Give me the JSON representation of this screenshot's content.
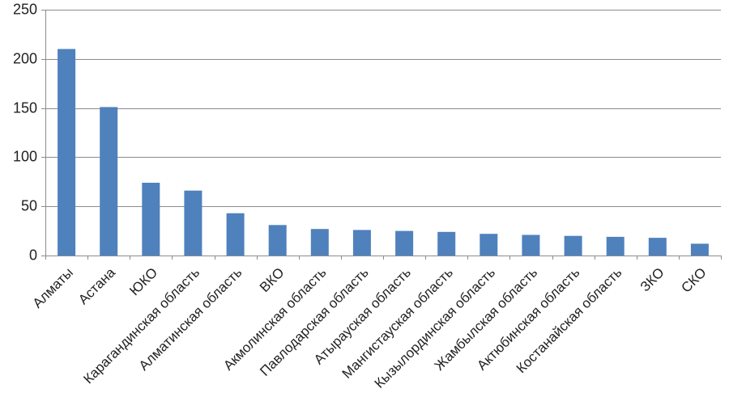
{
  "chart_data": {
    "type": "bar",
    "title": "",
    "xlabel": "",
    "ylabel": "",
    "ylim": [
      0,
      250
    ],
    "yticks": [
      0,
      50,
      100,
      150,
      200,
      250
    ],
    "grid": true,
    "legend": "none",
    "bar_color": "#4f81bd",
    "categories": [
      "Алматы",
      "Астана",
      "ЮКО",
      "Карагандинская  область",
      "Алматинская  область",
      "ВКО",
      "Акмолинская  область",
      "Павлодарская  область",
      "Атырауская  область",
      "Мангистауская  область",
      "Кызылординская  область",
      "Жамбылская  область",
      "Актюбинская  область",
      "Костанайская  область",
      "ЗКО",
      "СКО"
    ],
    "values": [
      210,
      151,
      74,
      66,
      43,
      31,
      27,
      26,
      25,
      24,
      22,
      21,
      20,
      19,
      18,
      12
    ]
  }
}
